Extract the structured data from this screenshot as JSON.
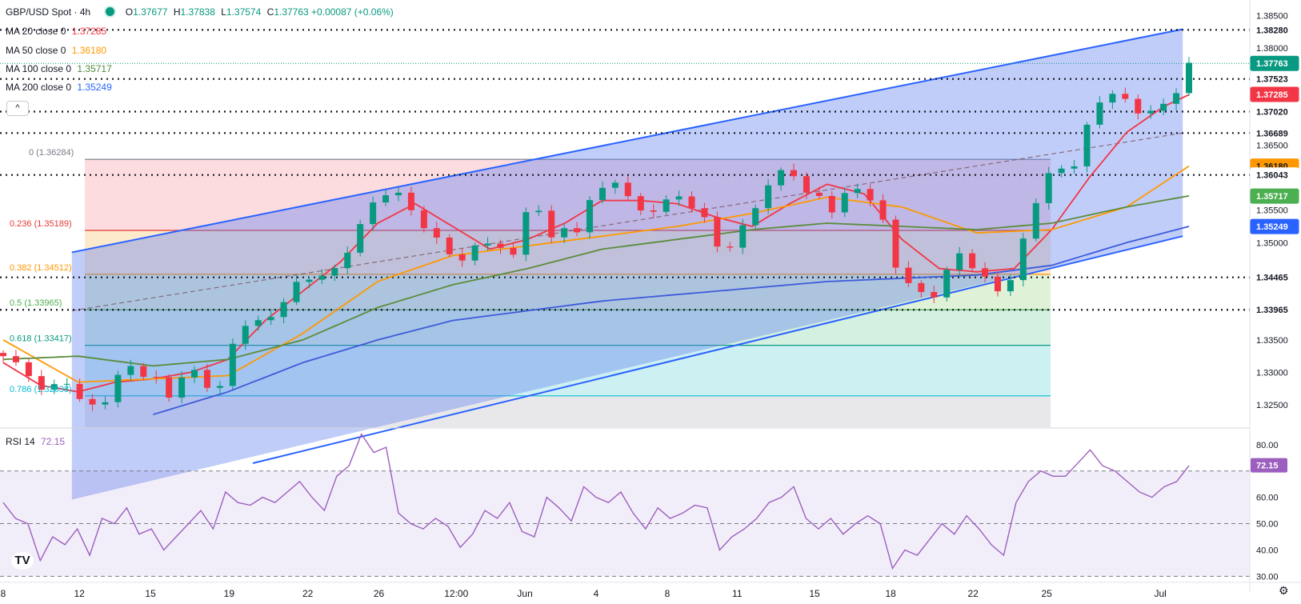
{
  "header": {
    "symbol": "GBP/USD Spot · 4h",
    "ohlc": {
      "o_label": "O",
      "o": "1.37677",
      "h_label": "H",
      "h": "1.37838",
      "l_label": "L",
      "l": "1.37574",
      "c_label": "C",
      "c": "1.37763",
      "change": "+0.00087 (+0.06%)"
    }
  },
  "indicators": [
    {
      "label": "MA 20 close 0",
      "value": "1.37285",
      "color": "#f23645"
    },
    {
      "label": "MA 50 close 0",
      "value": "1.36180",
      "color": "#ff9800"
    },
    {
      "label": "MA 100 close 0",
      "value": "1.35717",
      "color": "#4f8a3c"
    },
    {
      "label": "MA 200 close 0",
      "value": "1.35249",
      "color": "#2962ff"
    }
  ],
  "collapse_glyph": "^",
  "rsi_header": {
    "label": "RSI 14",
    "value": "72.15"
  },
  "logo_text": "TV",
  "settings_glyph": "⚙",
  "chart_data": [
    {
      "type": "candlestick",
      "title": "GBP/USD Spot · 4h",
      "ylim": [
        1.32155,
        1.3874
      ],
      "y_ticks": [
        "1.38500",
        "1.38000",
        "1.36500",
        "1.35500",
        "1.35000",
        "1.33500",
        "1.33000",
        "1.32500"
      ],
      "x_ticks": [
        "8",
        "12",
        "15",
        "19",
        "22",
        "26",
        "12:00",
        "Jun",
        "4",
        "8",
        "11",
        "15",
        "18",
        "22",
        "25",
        "Jul"
      ],
      "x_tick_pos": [
        0,
        6.1,
        11.8,
        18.1,
        24.4,
        30.1,
        36.3,
        41.8,
        47.5,
        53.2,
        58.8,
        65.0,
        71.1,
        77.7,
        83.6,
        92.7
      ],
      "n_bars": 94,
      "close_path": [
        [
          0,
          1.3325
        ],
        [
          2,
          1.33
        ],
        [
          3,
          1.327
        ],
        [
          5,
          1.329
        ],
        [
          6,
          1.3255
        ],
        [
          8,
          1.325
        ],
        [
          9,
          1.3285
        ],
        [
          10,
          1.332
        ],
        [
          11,
          1.329
        ],
        [
          12,
          1.33
        ],
        [
          13,
          1.326
        ],
        [
          14,
          1.328
        ],
        [
          15,
          1.331
        ],
        [
          16,
          1.329
        ],
        [
          17,
          1.326
        ],
        [
          18,
          1.33
        ],
        [
          18.5,
          1.336
        ],
        [
          19,
          1.3375
        ],
        [
          20,
          1.337
        ],
        [
          21,
          1.3385
        ],
        [
          22,
          1.3395
        ],
        [
          23,
          1.342
        ],
        [
          24,
          1.3455
        ],
        [
          25,
          1.344
        ],
        [
          26,
          1.345
        ],
        [
          27,
          1.347
        ],
        [
          28,
          1.35
        ],
        [
          29,
          1.354
        ],
        [
          30,
          1.358
        ],
        [
          31,
          1.357
        ],
        [
          32,
          1.3575
        ],
        [
          33,
          1.3545
        ],
        [
          34,
          1.351
        ],
        [
          35,
          1.3505
        ],
        [
          36,
          1.348
        ],
        [
          37,
          1.3465
        ],
        [
          38,
          1.3505
        ],
        [
          39,
          1.35
        ],
        [
          40,
          1.3485
        ],
        [
          41,
          1.3485
        ],
        [
          42,
          1.3555
        ],
        [
          43,
          1.3545
        ],
        [
          44,
          1.351
        ],
        [
          45,
          1.352
        ],
        [
          46,
          1.3515
        ],
        [
          47,
          1.357
        ],
        [
          48,
          1.358
        ],
        [
          49,
          1.3595
        ],
        [
          50,
          1.3575
        ],
        [
          51,
          1.3545
        ],
        [
          52,
          1.355
        ],
        [
          53,
          1.3565
        ],
        [
          54,
          1.357
        ],
        [
          55,
          1.356
        ],
        [
          56,
          1.3545
        ],
        [
          57,
          1.3495
        ],
        [
          58,
          1.349
        ],
        [
          59,
          1.3515
        ],
        [
          60,
          1.3545
        ],
        [
          61,
          1.3585
        ],
        [
          62,
          1.36
        ],
        [
          63,
          1.3625
        ],
        [
          64,
          1.357
        ],
        [
          65,
          1.3585
        ],
        [
          66,
          1.3545
        ],
        [
          67,
          1.356
        ],
        [
          68,
          1.359
        ],
        [
          69,
          1.3575
        ],
        [
          70,
          1.356
        ],
        [
          71,
          1.35
        ],
        [
          72,
          1.343
        ],
        [
          73,
          1.3445
        ],
        [
          74,
          1.34
        ],
        [
          75,
          1.3435
        ],
        [
          76,
          1.347
        ],
        [
          77,
          1.349
        ],
        [
          78,
          1.345
        ],
        [
          79,
          1.344
        ],
        [
          80,
          1.342
        ],
        [
          81,
          1.3455
        ],
        [
          82,
          1.352
        ],
        [
          83,
          1.358
        ],
        [
          84,
          1.3615
        ],
        [
          85,
          1.361
        ],
        [
          86,
          1.3625
        ],
        [
          87,
          1.369
        ],
        [
          88,
          1.372
        ],
        [
          89,
          1.3735
        ],
        [
          90,
          1.3715
        ],
        [
          91,
          1.37
        ],
        [
          92,
          1.3705
        ],
        [
          93,
          1.371
        ],
        [
          94,
          1.3735
        ],
        [
          95,
          1.3776
        ]
      ],
      "series": [
        {
          "name": "MA 20 close 0",
          "color": "#f23645",
          "path": [
            [
              0,
              1.3315
            ],
            [
              3,
              1.328
            ],
            [
              6,
              1.327
            ],
            [
              9,
              1.3285
            ],
            [
              12,
              1.329
            ],
            [
              15,
              1.33
            ],
            [
              18,
              1.332
            ],
            [
              21,
              1.338
            ],
            [
              24,
              1.3425
            ],
            [
              27,
              1.347
            ],
            [
              30,
              1.353
            ],
            [
              33,
              1.356
            ],
            [
              36,
              1.3525
            ],
            [
              39,
              1.349
            ],
            [
              42,
              1.3505
            ],
            [
              45,
              1.353
            ],
            [
              48,
              1.3565
            ],
            [
              51,
              1.3565
            ],
            [
              54,
              1.356
            ],
            [
              57,
              1.354
            ],
            [
              60,
              1.3525
            ],
            [
              63,
              1.356
            ],
            [
              66,
              1.359
            ],
            [
              69,
              1.3575
            ],
            [
              72,
              1.3505
            ],
            [
              75,
              1.346
            ],
            [
              78,
              1.3455
            ],
            [
              81,
              1.346
            ],
            [
              84,
              1.352
            ],
            [
              87,
              1.36
            ],
            [
              90,
              1.367
            ],
            [
              93,
              1.371
            ],
            [
              95,
              1.3728
            ]
          ]
        },
        {
          "name": "MA 50 close 0",
          "color": "#ff9800",
          "path": [
            [
              0,
              1.335
            ],
            [
              6,
              1.3285
            ],
            [
              12,
              1.329
            ],
            [
              18,
              1.3295
            ],
            [
              24,
              1.336
            ],
            [
              30,
              1.344
            ],
            [
              36,
              1.348
            ],
            [
              42,
              1.3495
            ],
            [
              48,
              1.351
            ],
            [
              54,
              1.3525
            ],
            [
              60,
              1.3545
            ],
            [
              66,
              1.357
            ],
            [
              72,
              1.3555
            ],
            [
              78,
              1.3515
            ],
            [
              84,
              1.352
            ],
            [
              90,
              1.3555
            ],
            [
              95,
              1.3618
            ]
          ]
        },
        {
          "name": "MA 100 close 0",
          "color": "#5b8c3b",
          "path": [
            [
              0,
              1.332
            ],
            [
              6,
              1.3325
            ],
            [
              12,
              1.331
            ],
            [
              18,
              1.332
            ],
            [
              24,
              1.335
            ],
            [
              30,
              1.34
            ],
            [
              36,
              1.3435
            ],
            [
              42,
              1.346
            ],
            [
              48,
              1.349
            ],
            [
              54,
              1.3505
            ],
            [
              60,
              1.352
            ],
            [
              66,
              1.353
            ],
            [
              72,
              1.3525
            ],
            [
              78,
              1.352
            ],
            [
              84,
              1.353
            ],
            [
              90,
              1.3555
            ],
            [
              95,
              1.3572
            ]
          ]
        },
        {
          "name": "MA 200 close 0",
          "color": "#3d5bd9",
          "path": [
            [
              12,
              1.3235
            ],
            [
              18,
              1.327
            ],
            [
              24,
              1.3315
            ],
            [
              30,
              1.335
            ],
            [
              36,
              1.338
            ],
            [
              42,
              1.3395
            ],
            [
              48,
              1.341
            ],
            [
              54,
              1.342
            ],
            [
              60,
              1.343
            ],
            [
              66,
              1.344
            ],
            [
              72,
              1.3445
            ],
            [
              78,
              1.345
            ],
            [
              84,
              1.3465
            ],
            [
              90,
              1.35
            ],
            [
              95,
              1.3525
            ]
          ]
        }
      ],
      "price_labels": [
        {
          "text": "1.38280",
          "y": 1.3828,
          "bg": "#ffffff",
          "color": "#131722",
          "dotted": true
        },
        {
          "text": "1.37763",
          "y": 1.37763,
          "bg": "#089981",
          "color": "#ffffff",
          "dotted": false
        },
        {
          "text": "1.37523",
          "y": 1.37523,
          "bg": "#ffffff",
          "color": "#131722",
          "dotted": true
        },
        {
          "text": "1.37285",
          "y": 1.37285,
          "bg": "#f23645",
          "color": "#ffffff",
          "dotted": false
        },
        {
          "text": "1.37020",
          "y": 1.3702,
          "bg": "#ffffff",
          "color": "#131722",
          "dotted": true
        },
        {
          "text": "1.36689",
          "y": 1.36689,
          "bg": "#ffffff",
          "color": "#131722",
          "dotted": true
        },
        {
          "text": "1.36180",
          "y": 1.3618,
          "bg": "#ff9800",
          "color": "#131722",
          "dotted": false
        },
        {
          "text": "1.36043",
          "y": 1.36043,
          "bg": "#ffffff",
          "color": "#131722",
          "dotted": true
        },
        {
          "text": "1.35717",
          "y": 1.35717,
          "bg": "#4caf50",
          "color": "#ffffff",
          "dotted": false
        },
        {
          "text": "1.35249",
          "y": 1.35249,
          "bg": "#2962ff",
          "color": "#ffffff",
          "dotted": false
        },
        {
          "text": "1.34465",
          "y": 1.34465,
          "bg": "#ffffff",
          "color": "#131722",
          "dotted": true
        },
        {
          "text": "1.33965",
          "y": 1.33965,
          "bg": "#ffffff",
          "color": "#131722",
          "dotted": true
        }
      ],
      "fib_levels": [
        {
          "ratio": "0",
          "label": "0 (1.36284)",
          "value": 1.36284,
          "color": "#787b86",
          "fill": "#fcd8dc"
        },
        {
          "ratio": "0.236",
          "label": "0.236 (1.35189)",
          "value": 1.35189,
          "color": "#e53935",
          "fill": "#fde8c8"
        },
        {
          "ratio": "0.382",
          "label": "0.382 (1.34512)",
          "value": 1.34512,
          "color": "#ff9800",
          "fill": "#dcefd2"
        },
        {
          "ratio": "0.5",
          "label": "0.5 (1.33965)",
          "value": 1.33965,
          "color": "#4caf50",
          "fill": "#cfeedd"
        },
        {
          "ratio": "0.618",
          "label": "0.618 (1.33417)",
          "value": 1.33417,
          "color": "#089981",
          "fill": "#c8eef2"
        },
        {
          "ratio": "0.786",
          "label": "0.786 (1.32638)",
          "value": 1.32638,
          "color": "#00bcd4",
          "fill": "#e6e6e8"
        }
      ],
      "channel": {
        "upper": [
          [
            5.5,
            1.3485
          ],
          [
            94.5,
            1.3829
          ]
        ],
        "lower": [
          [
            20,
            1.316
          ],
          [
            94.5,
            1.351
          ]
        ],
        "mid": [
          [
            5.5,
            1.3395
          ],
          [
            94.5,
            1.3669
          ]
        ]
      }
    },
    {
      "type": "line",
      "title": "RSI 14",
      "ylim": [
        28,
        86
      ],
      "y_ticks": [
        "80.00",
        "60.00",
        "50.00",
        "40.00",
        "30.00"
      ],
      "bands": [
        70,
        50,
        30
      ],
      "current": "72.15",
      "series": [
        {
          "name": "RSI 14",
          "color": "#9c5fbf",
          "values": [
            58,
            52,
            50,
            36,
            45,
            42,
            48,
            38,
            52,
            50,
            56,
            46,
            48,
            40,
            45,
            50,
            55,
            48,
            62,
            58,
            57,
            60,
            58,
            62,
            66,
            60,
            55,
            68,
            72,
            84,
            77,
            79,
            54,
            50,
            48,
            52,
            49,
            41,
            46,
            55,
            52,
            58,
            47,
            45,
            60,
            56,
            51,
            64,
            60,
            58,
            62,
            54,
            48,
            56,
            52,
            54,
            57,
            56,
            40,
            45,
            48,
            52,
            58,
            60,
            64,
            52,
            48,
            52,
            46,
            50,
            53,
            50,
            33,
            40,
            38,
            44,
            50,
            46,
            53,
            48,
            42,
            38,
            58,
            66,
            70,
            68,
            68,
            73,
            78,
            72,
            70,
            66,
            62,
            60,
            64,
            66,
            72
          ]
        }
      ]
    }
  ]
}
